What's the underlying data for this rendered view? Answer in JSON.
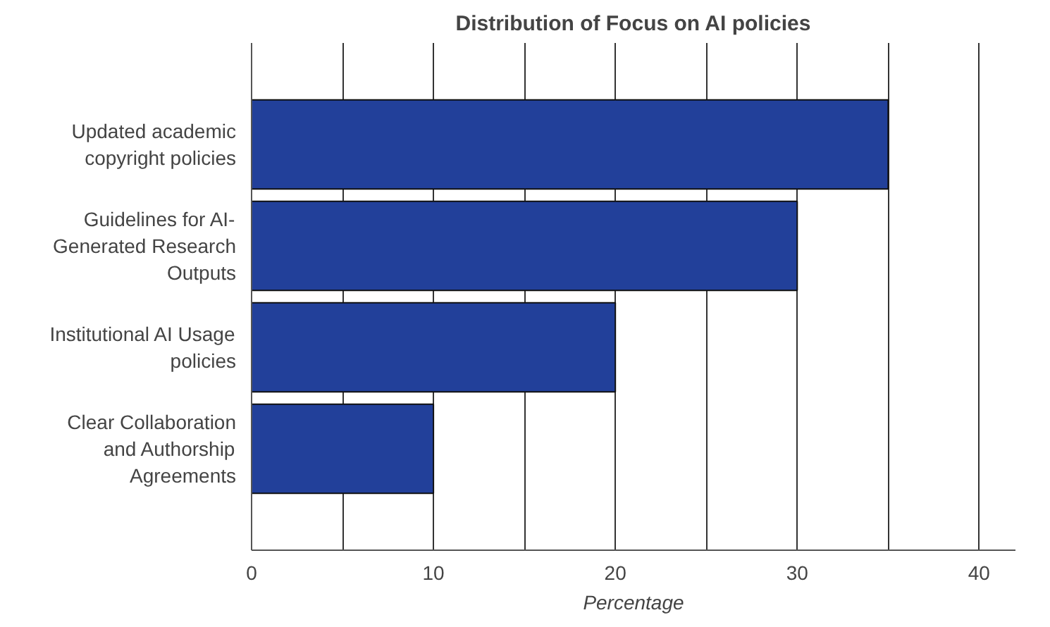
{
  "chart_data": {
    "type": "bar",
    "orientation": "horizontal",
    "title": "Distribution of Focus on AI policies",
    "xlabel": "Percentage",
    "categories": [
      "Updated academic copyright policies",
      "Guidelines for AI-Generated Research Outputs",
      "Institutional AI Usage policies",
      "Clear Collaboration and Authorship Agreements"
    ],
    "values": [
      35,
      30,
      20,
      10
    ],
    "color": "#22409a",
    "xlim": [
      0,
      42
    ],
    "xticks": [
      0,
      {
        "value": 5,
        "label": null
      },
      10,
      {
        "value": 15,
        "label": null
      },
      20,
      {
        "value": 25,
        "label": null
      },
      30,
      {
        "value": 35,
        "label": null
      },
      40
    ],
    "grid": "x"
  }
}
